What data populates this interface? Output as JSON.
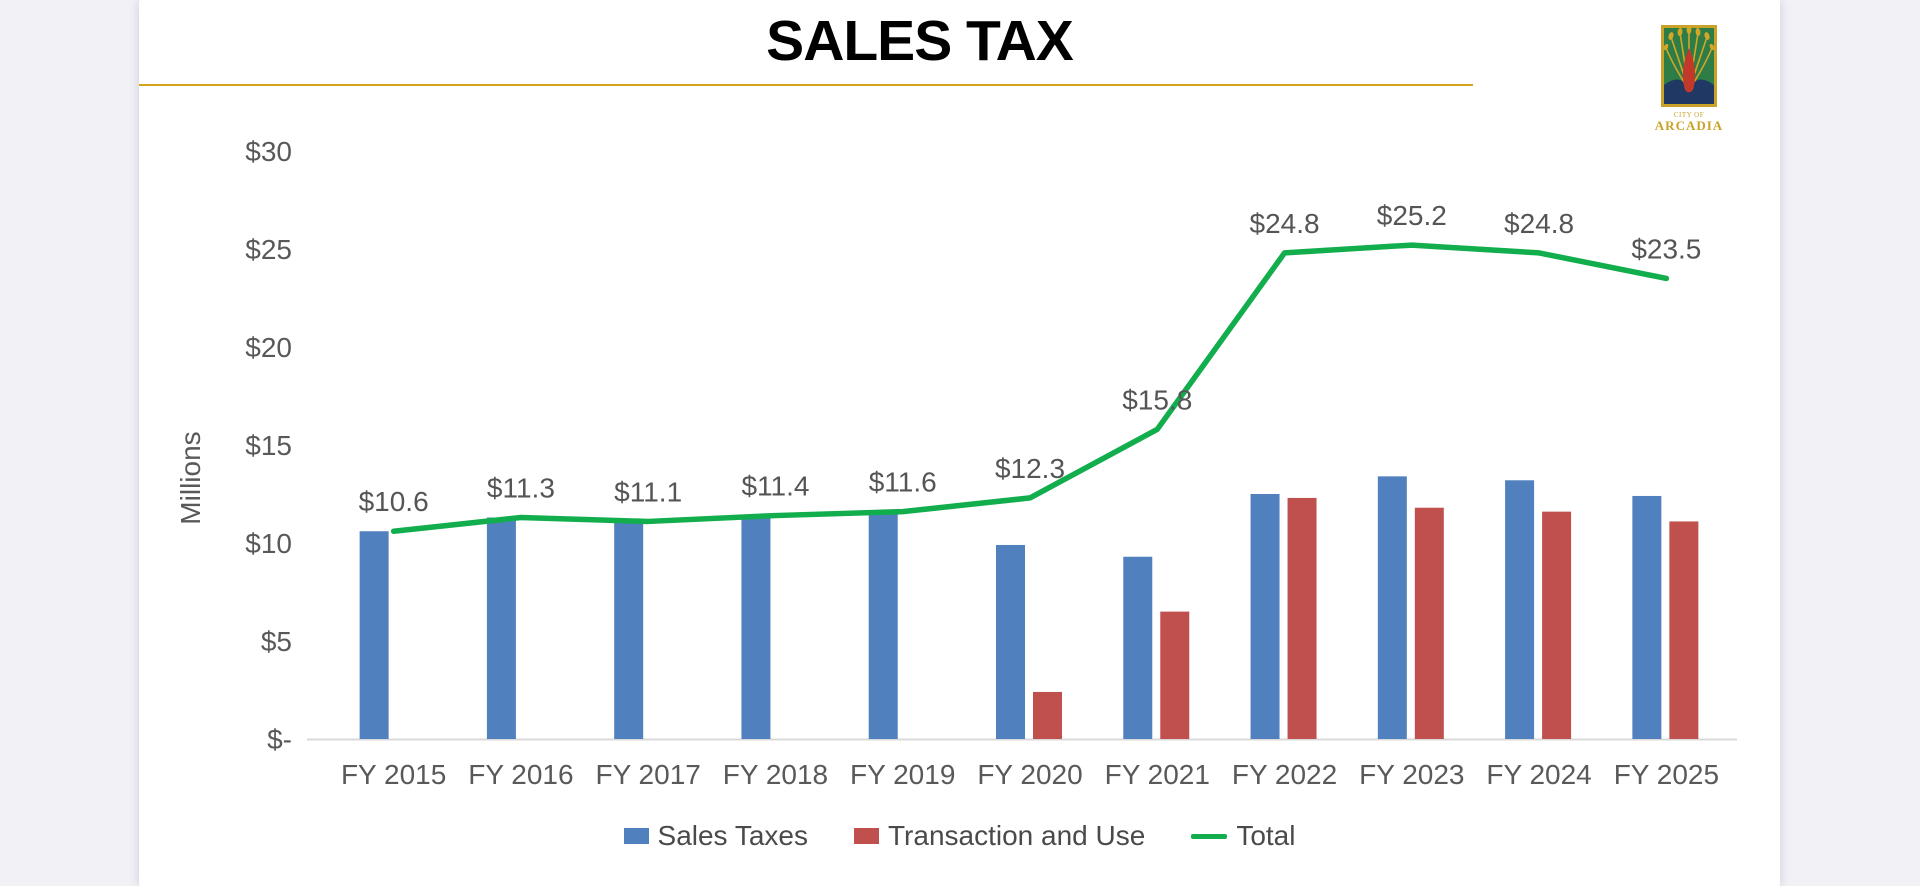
{
  "slide": {
    "title": "SALES TAX",
    "logo": {
      "city_of": "CITY OF",
      "name": "ARCADIA"
    }
  },
  "chart_data": {
    "type": "bar",
    "title": "SALES TAX",
    "xlabel": "",
    "ylabel": "Millions",
    "ylim": [
      0,
      30
    ],
    "grid": false,
    "legend_position": "bottom",
    "categories": [
      "FY 2015",
      "FY 2016",
      "FY 2017",
      "FY 2018",
      "FY 2019",
      "FY 2020",
      "FY 2021",
      "FY 2022",
      "FY 2023",
      "FY 2024",
      "FY 2025"
    ],
    "series": [
      {
        "name": "Sales Taxes",
        "type": "bar",
        "color": "#5081BE",
        "values": [
          10.6,
          11.3,
          11.1,
          11.4,
          11.6,
          9.9,
          9.3,
          12.5,
          13.4,
          13.2,
          12.4
        ]
      },
      {
        "name": "Transaction and Use",
        "type": "bar",
        "color": "#C0504D",
        "values": [
          0,
          0,
          0,
          0,
          0,
          2.4,
          6.5,
          12.3,
          11.8,
          11.6,
          11.1
        ]
      },
      {
        "name": "Total",
        "type": "line",
        "color": "#12AD4D",
        "values": [
          10.6,
          11.3,
          11.1,
          11.4,
          11.6,
          12.3,
          15.8,
          24.8,
          25.2,
          24.8,
          23.5
        ],
        "data_labels": [
          "$10.6",
          "$11.3",
          "$11.1",
          "$11.4",
          "$11.6",
          "$12.3",
          "$15.8",
          "$24.8",
          "$25.2",
          "$24.8",
          "$23.5"
        ]
      }
    ],
    "y_ticks": [
      {
        "value": 30,
        "label": "$30"
      },
      {
        "value": 25,
        "label": "$25"
      },
      {
        "value": 20,
        "label": "$20"
      },
      {
        "value": 15,
        "label": "$15"
      },
      {
        "value": 10,
        "label": "$10"
      },
      {
        "value": 5,
        "label": "$5"
      },
      {
        "value": 0,
        "label": "$-"
      }
    ]
  },
  "colors": {
    "background": "#F1F1F6",
    "slide": "#FFFFFF",
    "accent_gold": "#D5A21C",
    "title_text": "#000000",
    "axis_text": "#595959",
    "axis_line": "#D9D9D9",
    "logo_gold": "#C9A227",
    "logo_green": "#2E7D46",
    "logo_navy": "#1F3864",
    "logo_red": "#C0392B"
  }
}
